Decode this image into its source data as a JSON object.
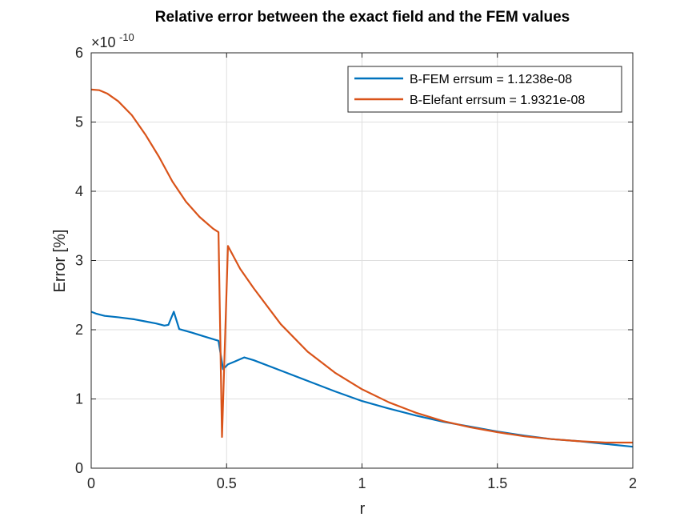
{
  "chart_data": {
    "type": "line",
    "title": "Relative error between the exact field and the FEM values",
    "xlabel": "r",
    "ylabel": "Error [%]",
    "xlim": [
      0,
      2
    ],
    "ylim": [
      0,
      6e-10
    ],
    "y_exponent_label": "×10",
    "y_exponent_power": "-10",
    "x_ticks": [
      0,
      0.5,
      1,
      1.5,
      2
    ],
    "x_tick_labels": [
      "0",
      "0.5",
      "1",
      "1.5",
      "2"
    ],
    "y_ticks": [
      0,
      1e-10,
      2e-10,
      3e-10,
      4e-10,
      5e-10,
      6e-10
    ],
    "y_tick_labels": [
      "0",
      "1",
      "2",
      "3",
      "4",
      "5",
      "6"
    ],
    "grid": true,
    "legend_position": "top-right",
    "series": [
      {
        "name": "B-FEM errsum = 1.1238e-08",
        "color": "#0072BD",
        "points": [
          [
            0.0,
            2.26e-10
          ],
          [
            0.02,
            2.23e-10
          ],
          [
            0.05,
            2.2e-10
          ],
          [
            0.1,
            2.18e-10
          ],
          [
            0.16,
            2.15e-10
          ],
          [
            0.2,
            2.12e-10
          ],
          [
            0.24,
            2.09e-10
          ],
          [
            0.27,
            2.06e-10
          ],
          [
            0.285,
            2.07e-10
          ],
          [
            0.305,
            2.26e-10
          ],
          [
            0.325,
            2.01e-10
          ],
          [
            0.37,
            1.96e-10
          ],
          [
            0.42,
            1.9e-10
          ],
          [
            0.47,
            1.84e-10
          ],
          [
            0.487,
            1.43e-10
          ],
          [
            0.505,
            1.5e-10
          ],
          [
            0.53,
            1.54e-10
          ],
          [
            0.565,
            1.6e-10
          ],
          [
            0.6,
            1.56e-10
          ],
          [
            0.7,
            1.41e-10
          ],
          [
            0.8,
            1.26e-10
          ],
          [
            0.9,
            1.11e-10
          ],
          [
            1.0,
            9.7e-11
          ],
          [
            1.1,
            8.6e-11
          ],
          [
            1.2,
            7.6e-11
          ],
          [
            1.3,
            6.7e-11
          ],
          [
            1.4,
            6e-11
          ],
          [
            1.5,
            5.3e-11
          ],
          [
            1.6,
            4.7e-11
          ],
          [
            1.7,
            4.2e-11
          ],
          [
            1.8,
            3.9e-11
          ],
          [
            1.9,
            3.5e-11
          ],
          [
            2.0,
            3.1e-11
          ]
        ]
      },
      {
        "name": "B-Elefant errsum = 1.9321e-08",
        "color": "#D95319",
        "points": [
          [
            0.0,
            5.47e-10
          ],
          [
            0.03,
            5.46e-10
          ],
          [
            0.06,
            5.41e-10
          ],
          [
            0.1,
            5.3e-10
          ],
          [
            0.15,
            5.1e-10
          ],
          [
            0.2,
            4.82e-10
          ],
          [
            0.25,
            4.5e-10
          ],
          [
            0.3,
            4.14e-10
          ],
          [
            0.35,
            3.85e-10
          ],
          [
            0.4,
            3.63e-10
          ],
          [
            0.45,
            3.46e-10
          ],
          [
            0.47,
            3.41e-10
          ],
          [
            0.483,
            4.5e-11
          ],
          [
            0.505,
            3.21e-10
          ],
          [
            0.55,
            2.88e-10
          ],
          [
            0.6,
            2.6e-10
          ],
          [
            0.7,
            2.08e-10
          ],
          [
            0.8,
            1.68e-10
          ],
          [
            0.9,
            1.38e-10
          ],
          [
            1.0,
            1.14e-10
          ],
          [
            1.1,
            9.5e-11
          ],
          [
            1.2,
            8e-11
          ],
          [
            1.3,
            6.8e-11
          ],
          [
            1.4,
            5.9e-11
          ],
          [
            1.5,
            5.2e-11
          ],
          [
            1.6,
            4.6e-11
          ],
          [
            1.7,
            4.2e-11
          ],
          [
            1.8,
            3.9e-11
          ],
          [
            1.9,
            3.7e-11
          ],
          [
            2.0,
            3.7e-11
          ]
        ]
      }
    ]
  }
}
